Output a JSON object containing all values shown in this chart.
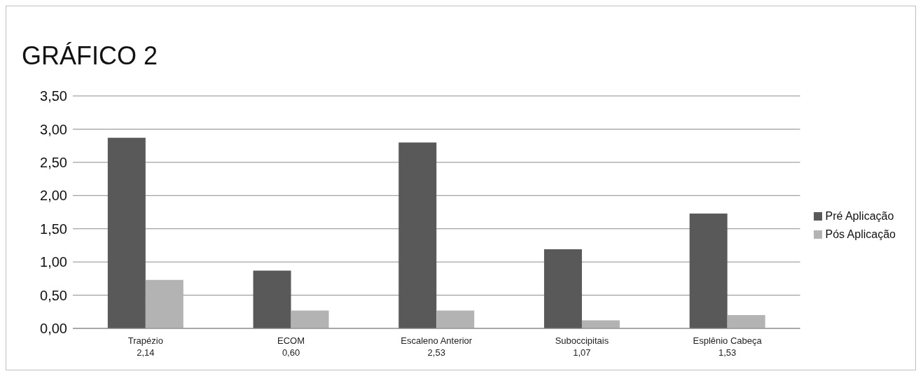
{
  "chart_data": {
    "type": "bar",
    "title": "GRÁFICO 2",
    "categories": [
      "Trapézio\n2,14",
      "ECOM\n0,60",
      "Escaleno Anterior\n2,53",
      "Suboccipitais\n1,07",
      "Esplênio Cabeça\n1,53"
    ],
    "series": [
      {
        "name": "Pré Aplicação",
        "color": "#595959",
        "values": [
          2.87,
          0.87,
          2.8,
          1.19,
          1.73
        ]
      },
      {
        "name": "Pós Aplicação",
        "color": "#b3b3b3",
        "values": [
          0.73,
          0.27,
          0.27,
          0.12,
          0.2
        ]
      }
    ],
    "ylim": [
      0,
      3.5
    ],
    "yticks": [
      {
        "value": 0,
        "label": "0,00"
      },
      {
        "value": 0.5,
        "label": "0,50"
      },
      {
        "value": 1,
        "label": "1,00"
      },
      {
        "value": 1.5,
        "label": "1,50"
      },
      {
        "value": 2,
        "label": "2,00"
      },
      {
        "value": 2.5,
        "label": "2,50"
      },
      {
        "value": 3,
        "label": "3,00"
      },
      {
        "value": 3.5,
        "label": "3,50"
      }
    ],
    "grid": "y",
    "legend": "right"
  }
}
